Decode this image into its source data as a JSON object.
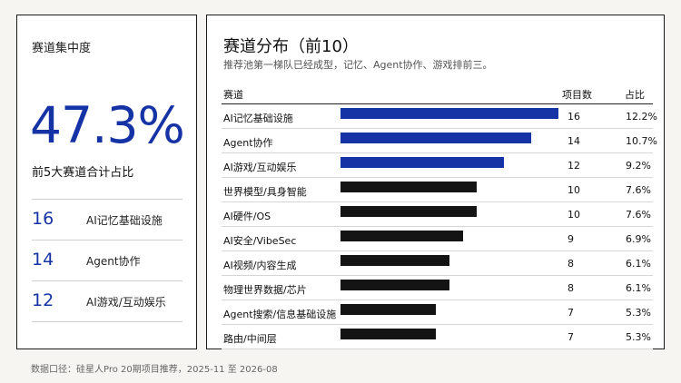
{
  "left": {
    "title": "赛道集中度",
    "big_value": "47.3%",
    "big_label": "前5大赛道合计占比",
    "top_items": [
      {
        "count": "16",
        "name": "AI记忆基础设施"
      },
      {
        "count": "14",
        "name": "Agent协作"
      },
      {
        "count": "12",
        "name": "AI游戏/互动娱乐"
      }
    ]
  },
  "right": {
    "title": "赛道分布（前10）",
    "subtitle": "推荐池第一梯队已经成型，记忆、Agent协作、游戏排前三。",
    "headers": {
      "category": "赛道",
      "count": "项目数",
      "share": "占比"
    }
  },
  "colors": {
    "highlight": "#1633a6",
    "normal": "#141414"
  },
  "chart_data": {
    "type": "bar",
    "orientation": "horizontal",
    "title": "赛道分布（前10）",
    "categories": [
      "AI记忆基础设施",
      "Agent协作",
      "AI游戏/互动娱乐",
      "世界模型/具身智能",
      "AI硬件/OS",
      "AI安全/VibeSec",
      "AI视频/内容生成",
      "物理世界数据/芯片",
      "Agent搜索/信息基础设施",
      "路由/中间层"
    ],
    "values": [
      16,
      14,
      12,
      10,
      10,
      9,
      8,
      8,
      7,
      7
    ],
    "count_labels": [
      "16",
      "14",
      "12",
      "10",
      "10",
      "9",
      "8",
      "8",
      "7",
      "7"
    ],
    "shares": [
      "12.2%",
      "10.7%",
      "9.2%",
      "7.6%",
      "7.6%",
      "6.9%",
      "6.1%",
      "6.1%",
      "5.3%",
      "5.3%"
    ],
    "highlighted_top": 3,
    "xlim": [
      0,
      16
    ]
  },
  "footnote": "数据口径：硅星人Pro 20期项目推荐，2025-11 至 2026-08"
}
